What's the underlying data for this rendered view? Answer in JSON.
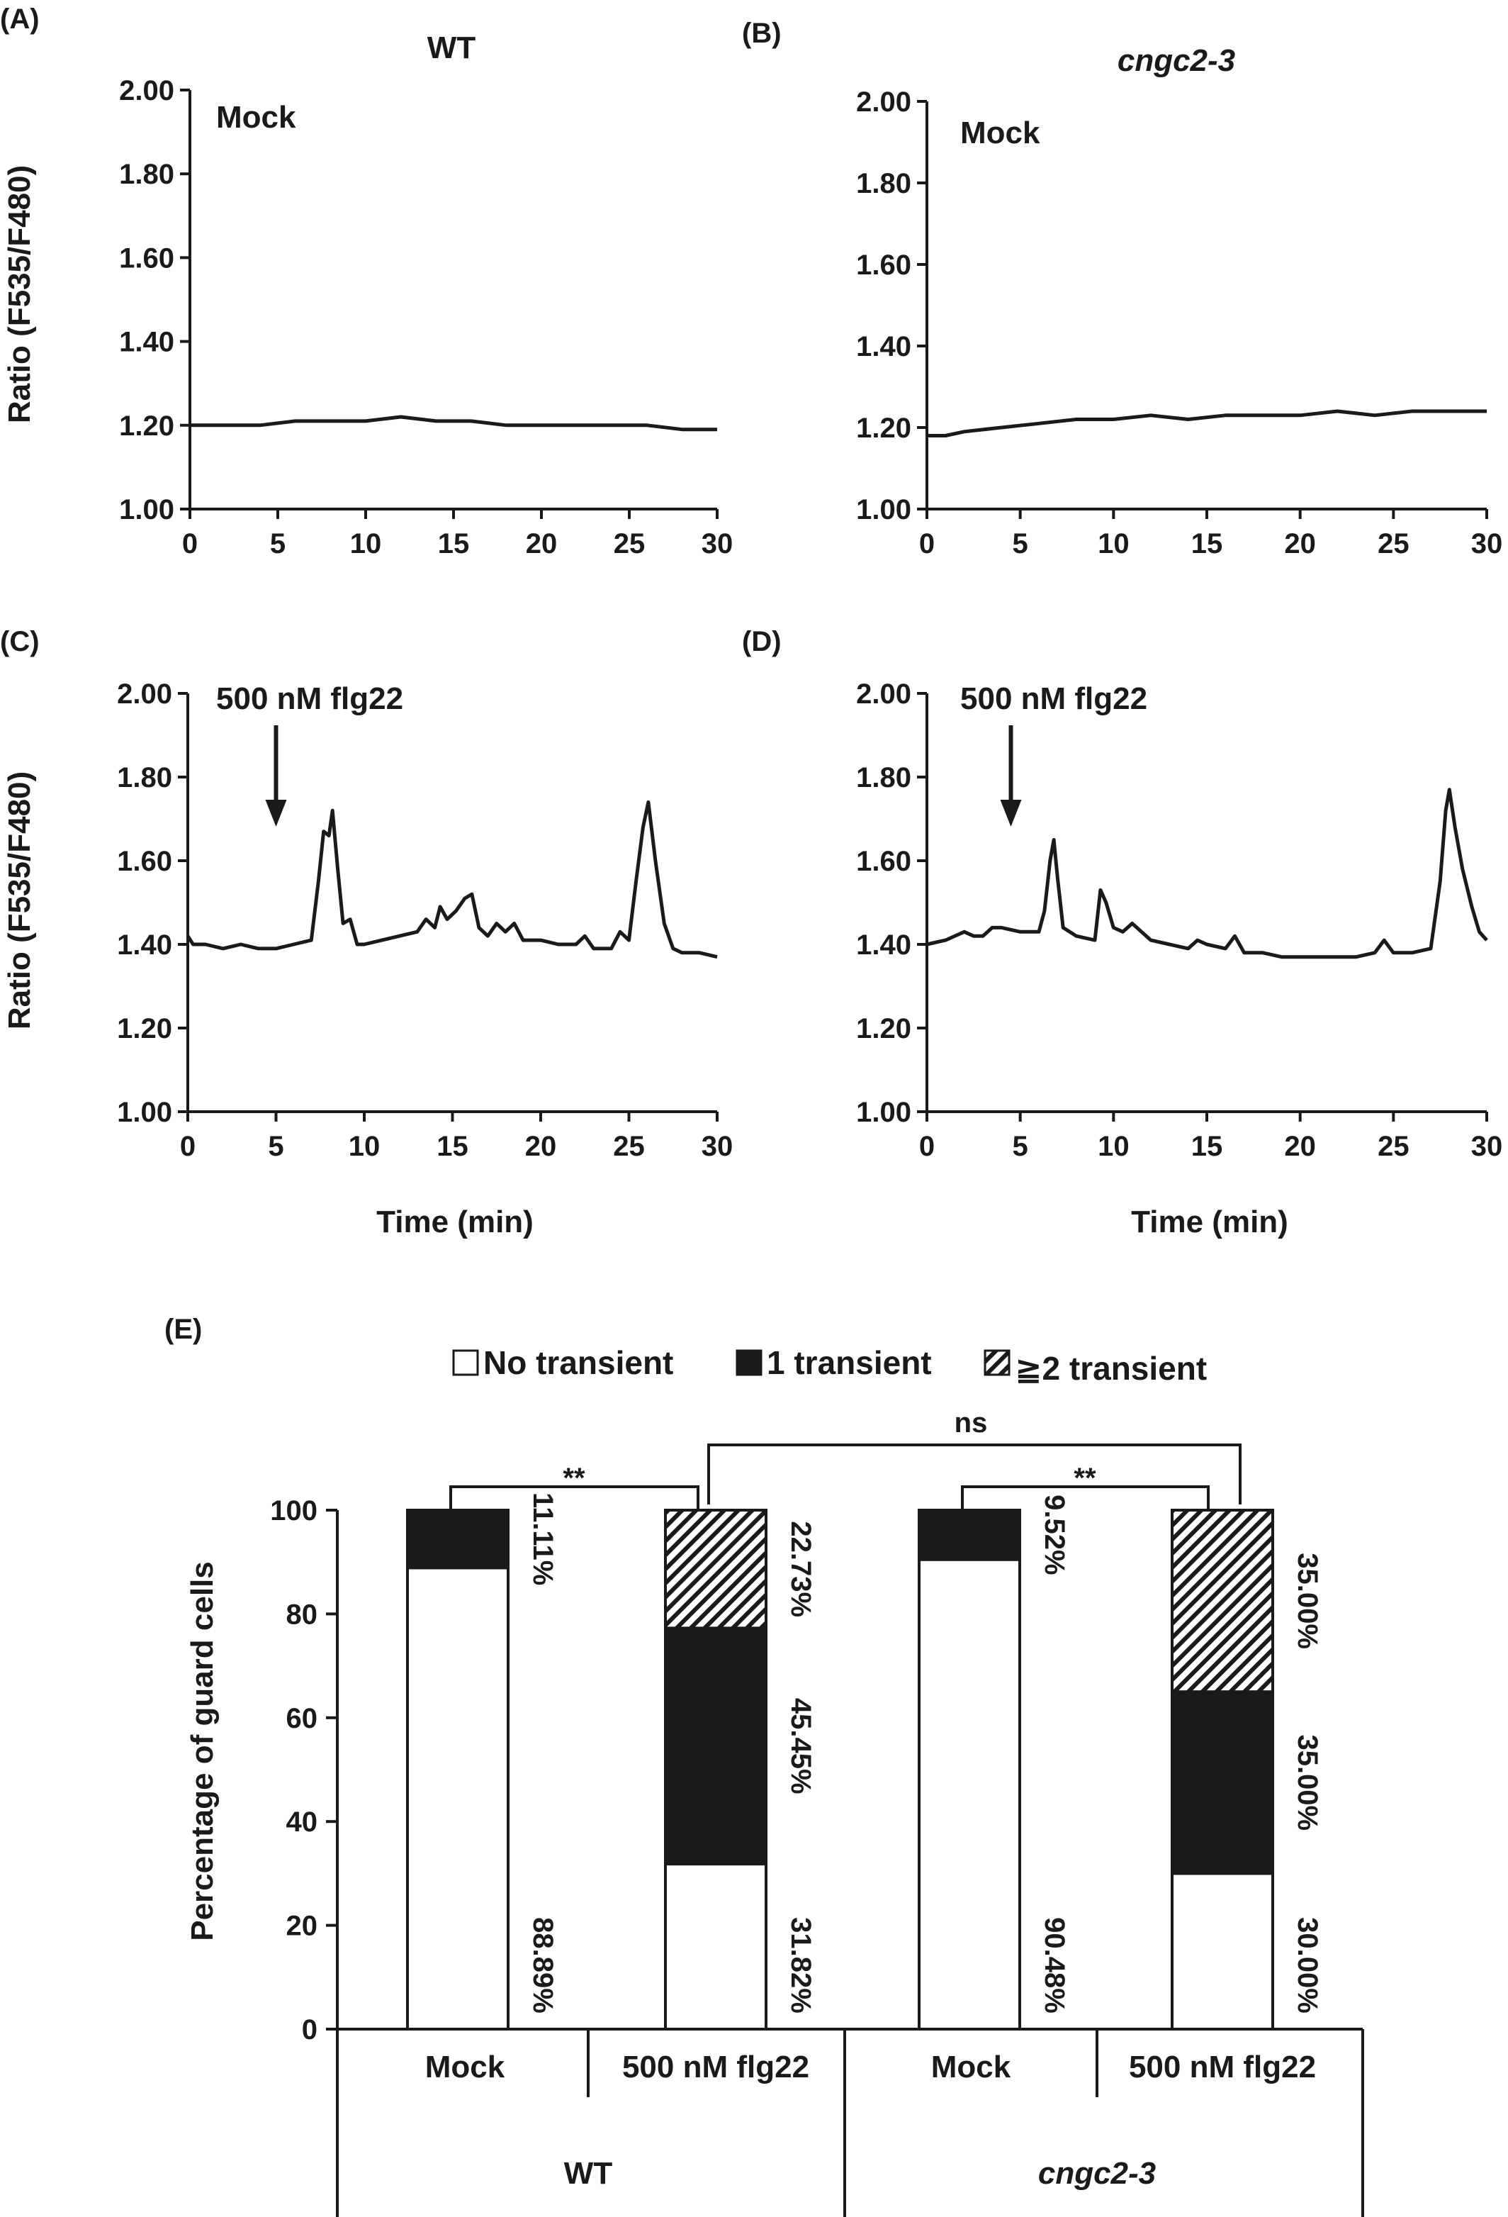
{
  "line_panels": [
    {
      "letter": "(A)",
      "title": "WT",
      "title_italic": false,
      "annotation": "Mock",
      "ylabel": "Ratio (F535/F480)",
      "xlabel": "",
      "arrow_x": null
    },
    {
      "letter": "(B)",
      "title": "cngc2-3",
      "title_italic": true,
      "annotation": "Mock",
      "ylabel": "",
      "xlabel": "",
      "arrow_x": null
    },
    {
      "letter": "(C)",
      "title": "",
      "title_italic": false,
      "annotation": "500 nM flg22",
      "ylabel": "Ratio (F535/F480)",
      "xlabel": "Time (min)",
      "arrow_x": 5
    },
    {
      "letter": "(D)",
      "title": "",
      "title_italic": false,
      "annotation": "500 nM flg22",
      "ylabel": "",
      "xlabel": "Time (min)",
      "arrow_x": 4.5
    }
  ],
  "bar_panel": {
    "letter": "(E)",
    "legend": [
      "No transient",
      "1 transient",
      "≧2 transient"
    ],
    "ylabel": "Percentage of guard cells",
    "sig_labels": {
      "wt": "**",
      "cngc": "**",
      "between": "ns"
    },
    "group_labels": [
      "WT",
      "cngc2-3"
    ],
    "condition_labels": [
      "Mock",
      "500 nM flg22",
      "Mock",
      "500 nM flg22"
    ],
    "pct_labels": [
      [
        "88.89%",
        "11.11%",
        ""
      ],
      [
        "31.82%",
        "45.45%",
        "22.73%"
      ],
      [
        "90.48%",
        "9.52%",
        ""
      ],
      [
        "30.00%",
        "35.00%",
        "35.00%"
      ]
    ]
  },
  "chart_data": [
    {
      "type": "line",
      "panel": "A",
      "x_ticks": [
        0,
        5,
        10,
        15,
        20,
        25,
        30
      ],
      "y_ticks": [
        "1.00",
        "1.20",
        "1.40",
        "1.60",
        "1.80",
        "2.00"
      ],
      "xlim": [
        0,
        30
      ],
      "ylim": [
        1.0,
        2.0
      ],
      "series": [
        {
          "x": [
            0,
            2,
            4,
            6,
            8,
            10,
            12,
            14,
            16,
            18,
            20,
            22,
            24,
            26,
            28,
            30
          ],
          "y": [
            1.2,
            1.2,
            1.2,
            1.21,
            1.21,
            1.21,
            1.22,
            1.21,
            1.21,
            1.2,
            1.2,
            1.2,
            1.2,
            1.2,
            1.19,
            1.19
          ]
        }
      ]
    },
    {
      "type": "line",
      "panel": "B",
      "x_ticks": [
        0,
        5,
        10,
        15,
        20,
        25,
        30
      ],
      "y_ticks": [
        "1.00",
        "1.20",
        "1.40",
        "1.60",
        "1.80",
        "2.00"
      ],
      "xlim": [
        0,
        30
      ],
      "ylim": [
        1.0,
        2.0
      ],
      "series": [
        {
          "x": [
            0,
            1,
            2,
            4,
            6,
            8,
            10,
            12,
            14,
            16,
            18,
            20,
            22,
            24,
            26,
            28,
            30
          ],
          "y": [
            1.18,
            1.18,
            1.19,
            1.2,
            1.21,
            1.22,
            1.22,
            1.23,
            1.22,
            1.23,
            1.23,
            1.23,
            1.24,
            1.23,
            1.24,
            1.24,
            1.24
          ]
        }
      ]
    },
    {
      "type": "line",
      "panel": "C",
      "x_ticks": [
        0,
        5,
        10,
        15,
        20,
        25,
        30
      ],
      "y_ticks": [
        "1.00",
        "1.20",
        "1.40",
        "1.60",
        "1.80",
        "2.00"
      ],
      "xlim": [
        0,
        30
      ],
      "ylim": [
        1.0,
        2.0
      ],
      "series": [
        {
          "x": [
            0,
            0.3,
            1,
            2,
            3,
            4,
            5,
            6,
            7,
            7.4,
            7.7,
            8.0,
            8.2,
            8.5,
            8.8,
            9.2,
            9.6,
            10,
            11,
            12,
            13,
            13.5,
            14,
            14.3,
            14.7,
            15.2,
            15.7,
            16.1,
            16.5,
            17,
            17.5,
            18,
            18.5,
            19,
            20,
            21,
            22,
            22.5,
            23,
            24,
            24.5,
            25,
            25.4,
            25.8,
            26.1,
            26.5,
            27,
            27.5,
            28,
            29,
            30
          ],
          "y": [
            1.42,
            1.4,
            1.4,
            1.39,
            1.4,
            1.39,
            1.39,
            1.4,
            1.41,
            1.55,
            1.67,
            1.66,
            1.72,
            1.58,
            1.45,
            1.46,
            1.4,
            1.4,
            1.41,
            1.42,
            1.43,
            1.46,
            1.44,
            1.49,
            1.46,
            1.48,
            1.51,
            1.52,
            1.44,
            1.42,
            1.45,
            1.43,
            1.45,
            1.41,
            1.41,
            1.4,
            1.4,
            1.42,
            1.39,
            1.39,
            1.43,
            1.41,
            1.55,
            1.68,
            1.74,
            1.6,
            1.45,
            1.39,
            1.38,
            1.38,
            1.37
          ]
        }
      ]
    },
    {
      "type": "line",
      "panel": "D",
      "x_ticks": [
        0,
        5,
        10,
        15,
        20,
        25,
        30
      ],
      "y_ticks": [
        "1.00",
        "1.20",
        "1.40",
        "1.60",
        "1.80",
        "2.00"
      ],
      "xlim": [
        0,
        30
      ],
      "ylim": [
        1.0,
        2.0
      ],
      "series": [
        {
          "x": [
            0,
            1,
            2,
            2.5,
            3,
            3.5,
            4,
            5,
            6,
            6.3,
            6.6,
            6.8,
            7.0,
            7.3,
            8,
            9,
            9.3,
            9.6,
            10,
            10.5,
            11,
            12,
            13,
            14,
            14.5,
            15,
            16,
            16.5,
            17,
            18,
            19,
            20,
            21,
            22,
            23,
            24,
            24.5,
            25,
            26,
            27,
            27.5,
            27.8,
            28,
            28.3,
            28.7,
            29.2,
            29.6,
            30
          ],
          "y": [
            1.4,
            1.41,
            1.43,
            1.42,
            1.42,
            1.44,
            1.44,
            1.43,
            1.43,
            1.48,
            1.6,
            1.65,
            1.56,
            1.44,
            1.42,
            1.41,
            1.53,
            1.5,
            1.44,
            1.43,
            1.45,
            1.41,
            1.4,
            1.39,
            1.41,
            1.4,
            1.39,
            1.42,
            1.38,
            1.38,
            1.37,
            1.37,
            1.37,
            1.37,
            1.37,
            1.38,
            1.41,
            1.38,
            1.38,
            1.39,
            1.55,
            1.72,
            1.77,
            1.68,
            1.58,
            1.49,
            1.43,
            1.41
          ]
        }
      ]
    },
    {
      "type": "bar",
      "panel": "E",
      "stacked": true,
      "categories": [
        "Mock",
        "500 nM flg22",
        "Mock",
        "500 nM flg22"
      ],
      "groups": [
        "WT",
        "WT",
        "cngc2-3",
        "cngc2-3"
      ],
      "y_ticks": [
        "0",
        "20",
        "40",
        "60",
        "80",
        "100"
      ],
      "ylim": [
        0,
        100
      ],
      "legend_position": "top-center",
      "series": [
        {
          "name": "No transient",
          "values": [
            88.89,
            31.82,
            90.48,
            30.0
          ],
          "color": "#ffffff"
        },
        {
          "name": "1 transient",
          "values": [
            11.11,
            45.45,
            9.52,
            35.0
          ],
          "color": "#1a1a1a"
        },
        {
          "name": "≧2 transient",
          "values": [
            0,
            22.73,
            0,
            35.0
          ],
          "color": "hatch"
        }
      ]
    }
  ],
  "colors": {
    "ink": "#1a1a1a",
    "background": "#ffffff"
  }
}
